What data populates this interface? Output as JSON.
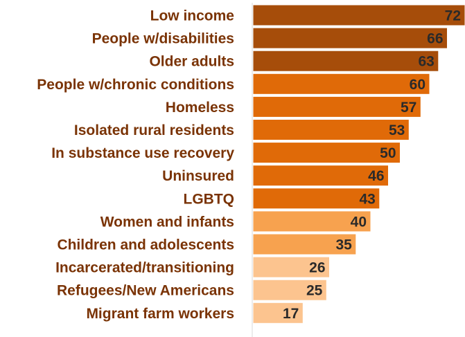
{
  "chart_data": {
    "type": "bar",
    "orientation": "horizontal",
    "categories": [
      "Low income",
      "People w/disabilities",
      "Older adults",
      "People w/chronic conditions",
      "Homeless",
      "Isolated rural residents",
      "In substance use recovery",
      "Uninsured",
      "LGBTQ",
      "Women and infants",
      "Children and adolescents",
      "Incarcerated/transitioning",
      "Refugees/New Americans",
      "Migrant farm workers"
    ],
    "values": [
      72,
      66,
      63,
      60,
      57,
      53,
      50,
      46,
      43,
      40,
      35,
      26,
      25,
      17
    ],
    "value_labels": [
      "72",
      "66",
      "63",
      "60",
      "57",
      "53",
      "50",
      "46",
      "43",
      "40",
      "35",
      "26",
      "25",
      "17"
    ],
    "bar_colors": [
      "#a64d0a",
      "#a64d0a",
      "#a64d0a",
      "#e06a08",
      "#e06a08",
      "#e06a08",
      "#e06a08",
      "#e06a08",
      "#e06a08",
      "#f7a24f",
      "#f7a24f",
      "#fcc48f",
      "#fcc48f",
      "#fcc48f"
    ],
    "xlim": [
      0,
      72
    ],
    "legend": "none",
    "grid": false
  }
}
